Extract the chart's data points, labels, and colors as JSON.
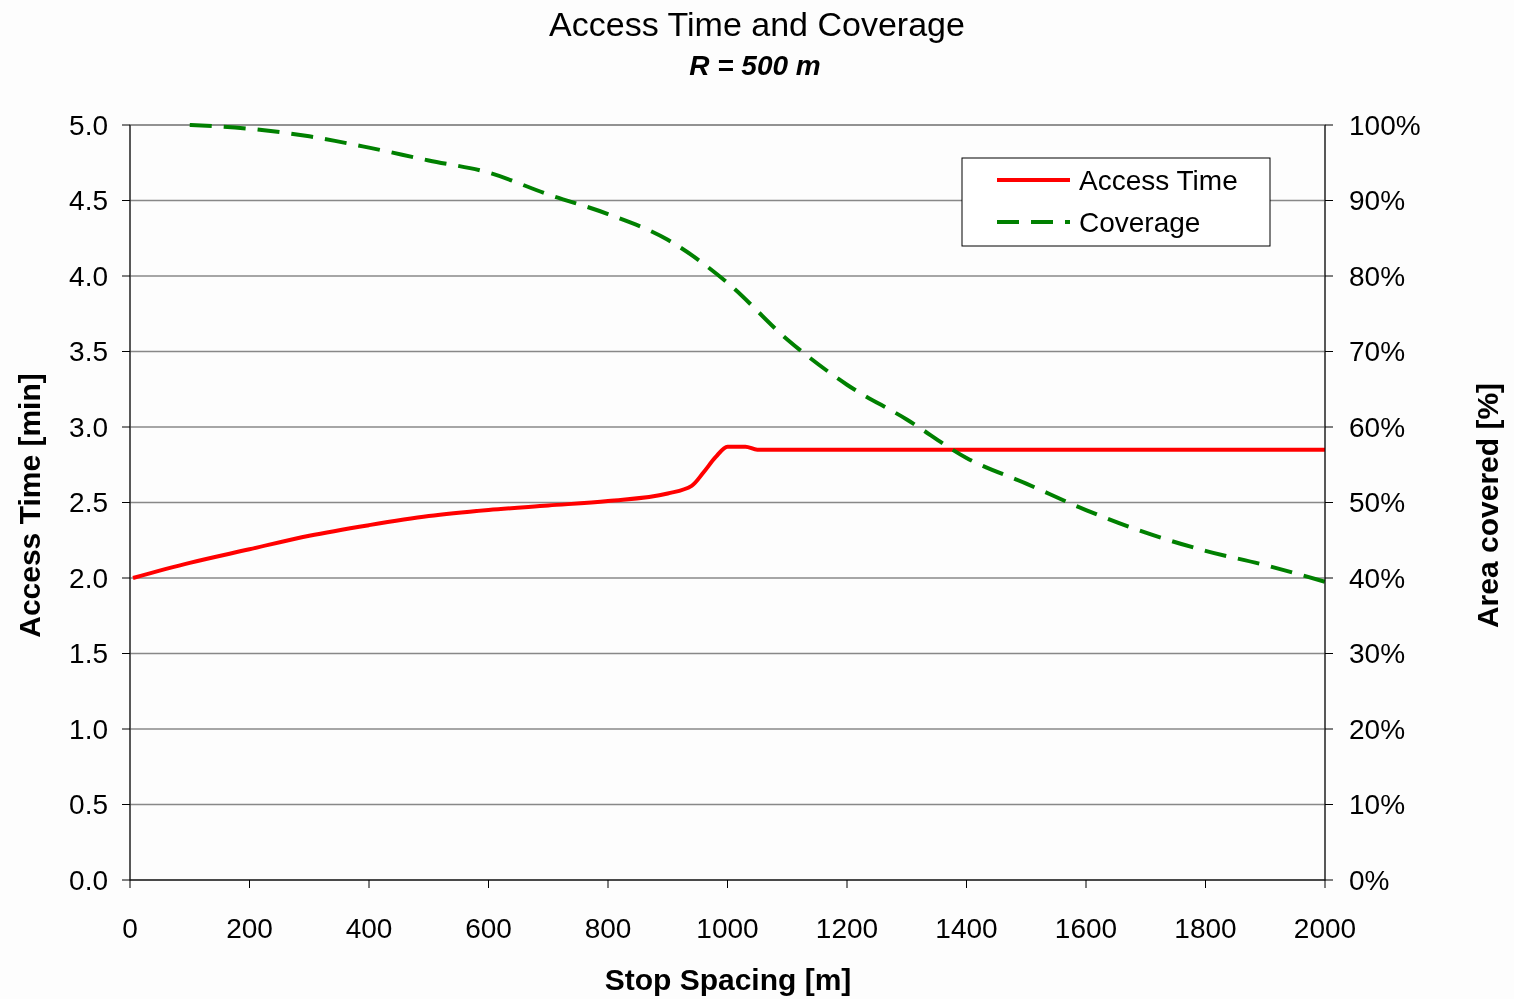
{
  "chart_data": {
    "type": "line",
    "title": "Access Time and Coverage",
    "subtitle": "R = 500 m",
    "xlabel": "Stop Spacing [m]",
    "ylabel": "Access Time [min]",
    "y2label": "Area covered [%]",
    "xlim": [
      0,
      2000
    ],
    "xticks": [
      0,
      200,
      400,
      600,
      800,
      1000,
      1200,
      1400,
      1600,
      1800,
      2000
    ],
    "ylim": [
      0,
      5
    ],
    "yticks": [
      {
        "value": 0,
        "label": "0.0"
      },
      {
        "value": 0.5,
        "label": "0.5"
      },
      {
        "value": 1,
        "label": "1.0"
      },
      {
        "value": 1.5,
        "label": "1.5"
      },
      {
        "value": 2,
        "label": "2.0"
      },
      {
        "value": 2.5,
        "label": "2.5"
      },
      {
        "value": 3,
        "label": "3.0"
      },
      {
        "value": 3.5,
        "label": "3.5"
      },
      {
        "value": 4,
        "label": "4.0"
      },
      {
        "value": 4.5,
        "label": "4.5"
      },
      {
        "value": 5,
        "label": "5.0"
      }
    ],
    "y2lim": [
      0,
      100
    ],
    "y2ticks": [
      {
        "value": 0,
        "label": "0%"
      },
      {
        "value": 10,
        "label": "10%"
      },
      {
        "value": 20,
        "label": "20%"
      },
      {
        "value": 30,
        "label": "30%"
      },
      {
        "value": 40,
        "label": "40%"
      },
      {
        "value": 50,
        "label": "50%"
      },
      {
        "value": 60,
        "label": "60%"
      },
      {
        "value": 70,
        "label": "70%"
      },
      {
        "value": 80,
        "label": "80%"
      },
      {
        "value": 90,
        "label": "90%"
      },
      {
        "value": 100,
        "label": "100%"
      }
    ],
    "grid": "y",
    "legend": "top right",
    "marker": "none",
    "series": [
      {
        "name": "Access Time",
        "color": "#ff0000",
        "line_style": "solid",
        "x": [
          5,
          100,
          200,
          300,
          400,
          500,
          600,
          700,
          800,
          900,
          940,
          960,
          980,
          1000,
          1030,
          1050,
          1200,
          1400,
          1600,
          1800,
          2000
        ],
        "values": [
          2.0,
          2.1,
          2.19,
          2.28,
          2.35,
          2.41,
          2.45,
          2.48,
          2.51,
          2.56,
          2.61,
          2.7,
          2.8,
          2.87,
          2.87,
          2.85,
          2.85,
          2.85,
          2.85,
          2.85,
          2.85
        ]
      },
      {
        "name": "Coverage",
        "color": "#008000",
        "line_style": "dashed",
        "axis": "y2",
        "x": [
          100,
          200,
          300,
          400,
          500,
          600,
          700,
          800,
          900,
          1000,
          1100,
          1200,
          1300,
          1400,
          1500,
          1600,
          1700,
          1800,
          1900,
          2000
        ],
        "values": [
          100,
          99.5,
          98.5,
          97,
          95.3,
          93.7,
          90.8,
          88.2,
          84.8,
          79.1,
          71.6,
          65.6,
          61,
          55.9,
          52.5,
          49,
          46,
          43.6,
          41.7,
          39.5
        ]
      }
    ]
  }
}
